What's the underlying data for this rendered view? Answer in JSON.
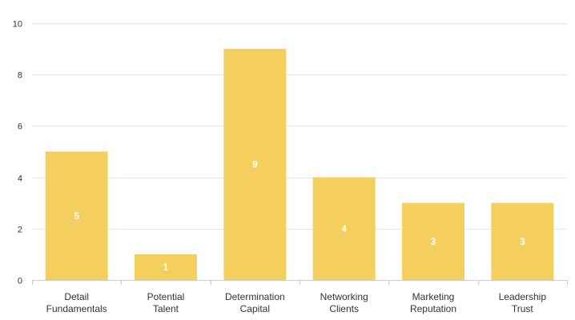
{
  "chart_data": {
    "type": "bar",
    "categories": [
      [
        "Detail",
        "Fundamentals"
      ],
      [
        "Potential",
        "Talent"
      ],
      [
        "Determination",
        "Capital"
      ],
      [
        "Networking",
        "Clients"
      ],
      [
        "Marketing",
        "Reputation"
      ],
      [
        "Leadership",
        "Trust"
      ]
    ],
    "values": [
      5,
      1,
      9,
      4,
      3,
      3
    ],
    "data_labels": [
      "5",
      "1",
      "9",
      "4",
      "3",
      "3"
    ],
    "ylim": [
      0,
      10
    ],
    "yticks": [
      0,
      2,
      4,
      6,
      8,
      10
    ],
    "ytick_labels": [
      "0",
      "2",
      "4",
      "6",
      "8",
      "10"
    ],
    "grid": true,
    "legend": "none",
    "colors": {
      "bar": "#f4cf5e",
      "grid": "#e6e6e6",
      "axis": "#cccccc",
      "text": "#333333",
      "data_label": "#ffffff"
    }
  }
}
